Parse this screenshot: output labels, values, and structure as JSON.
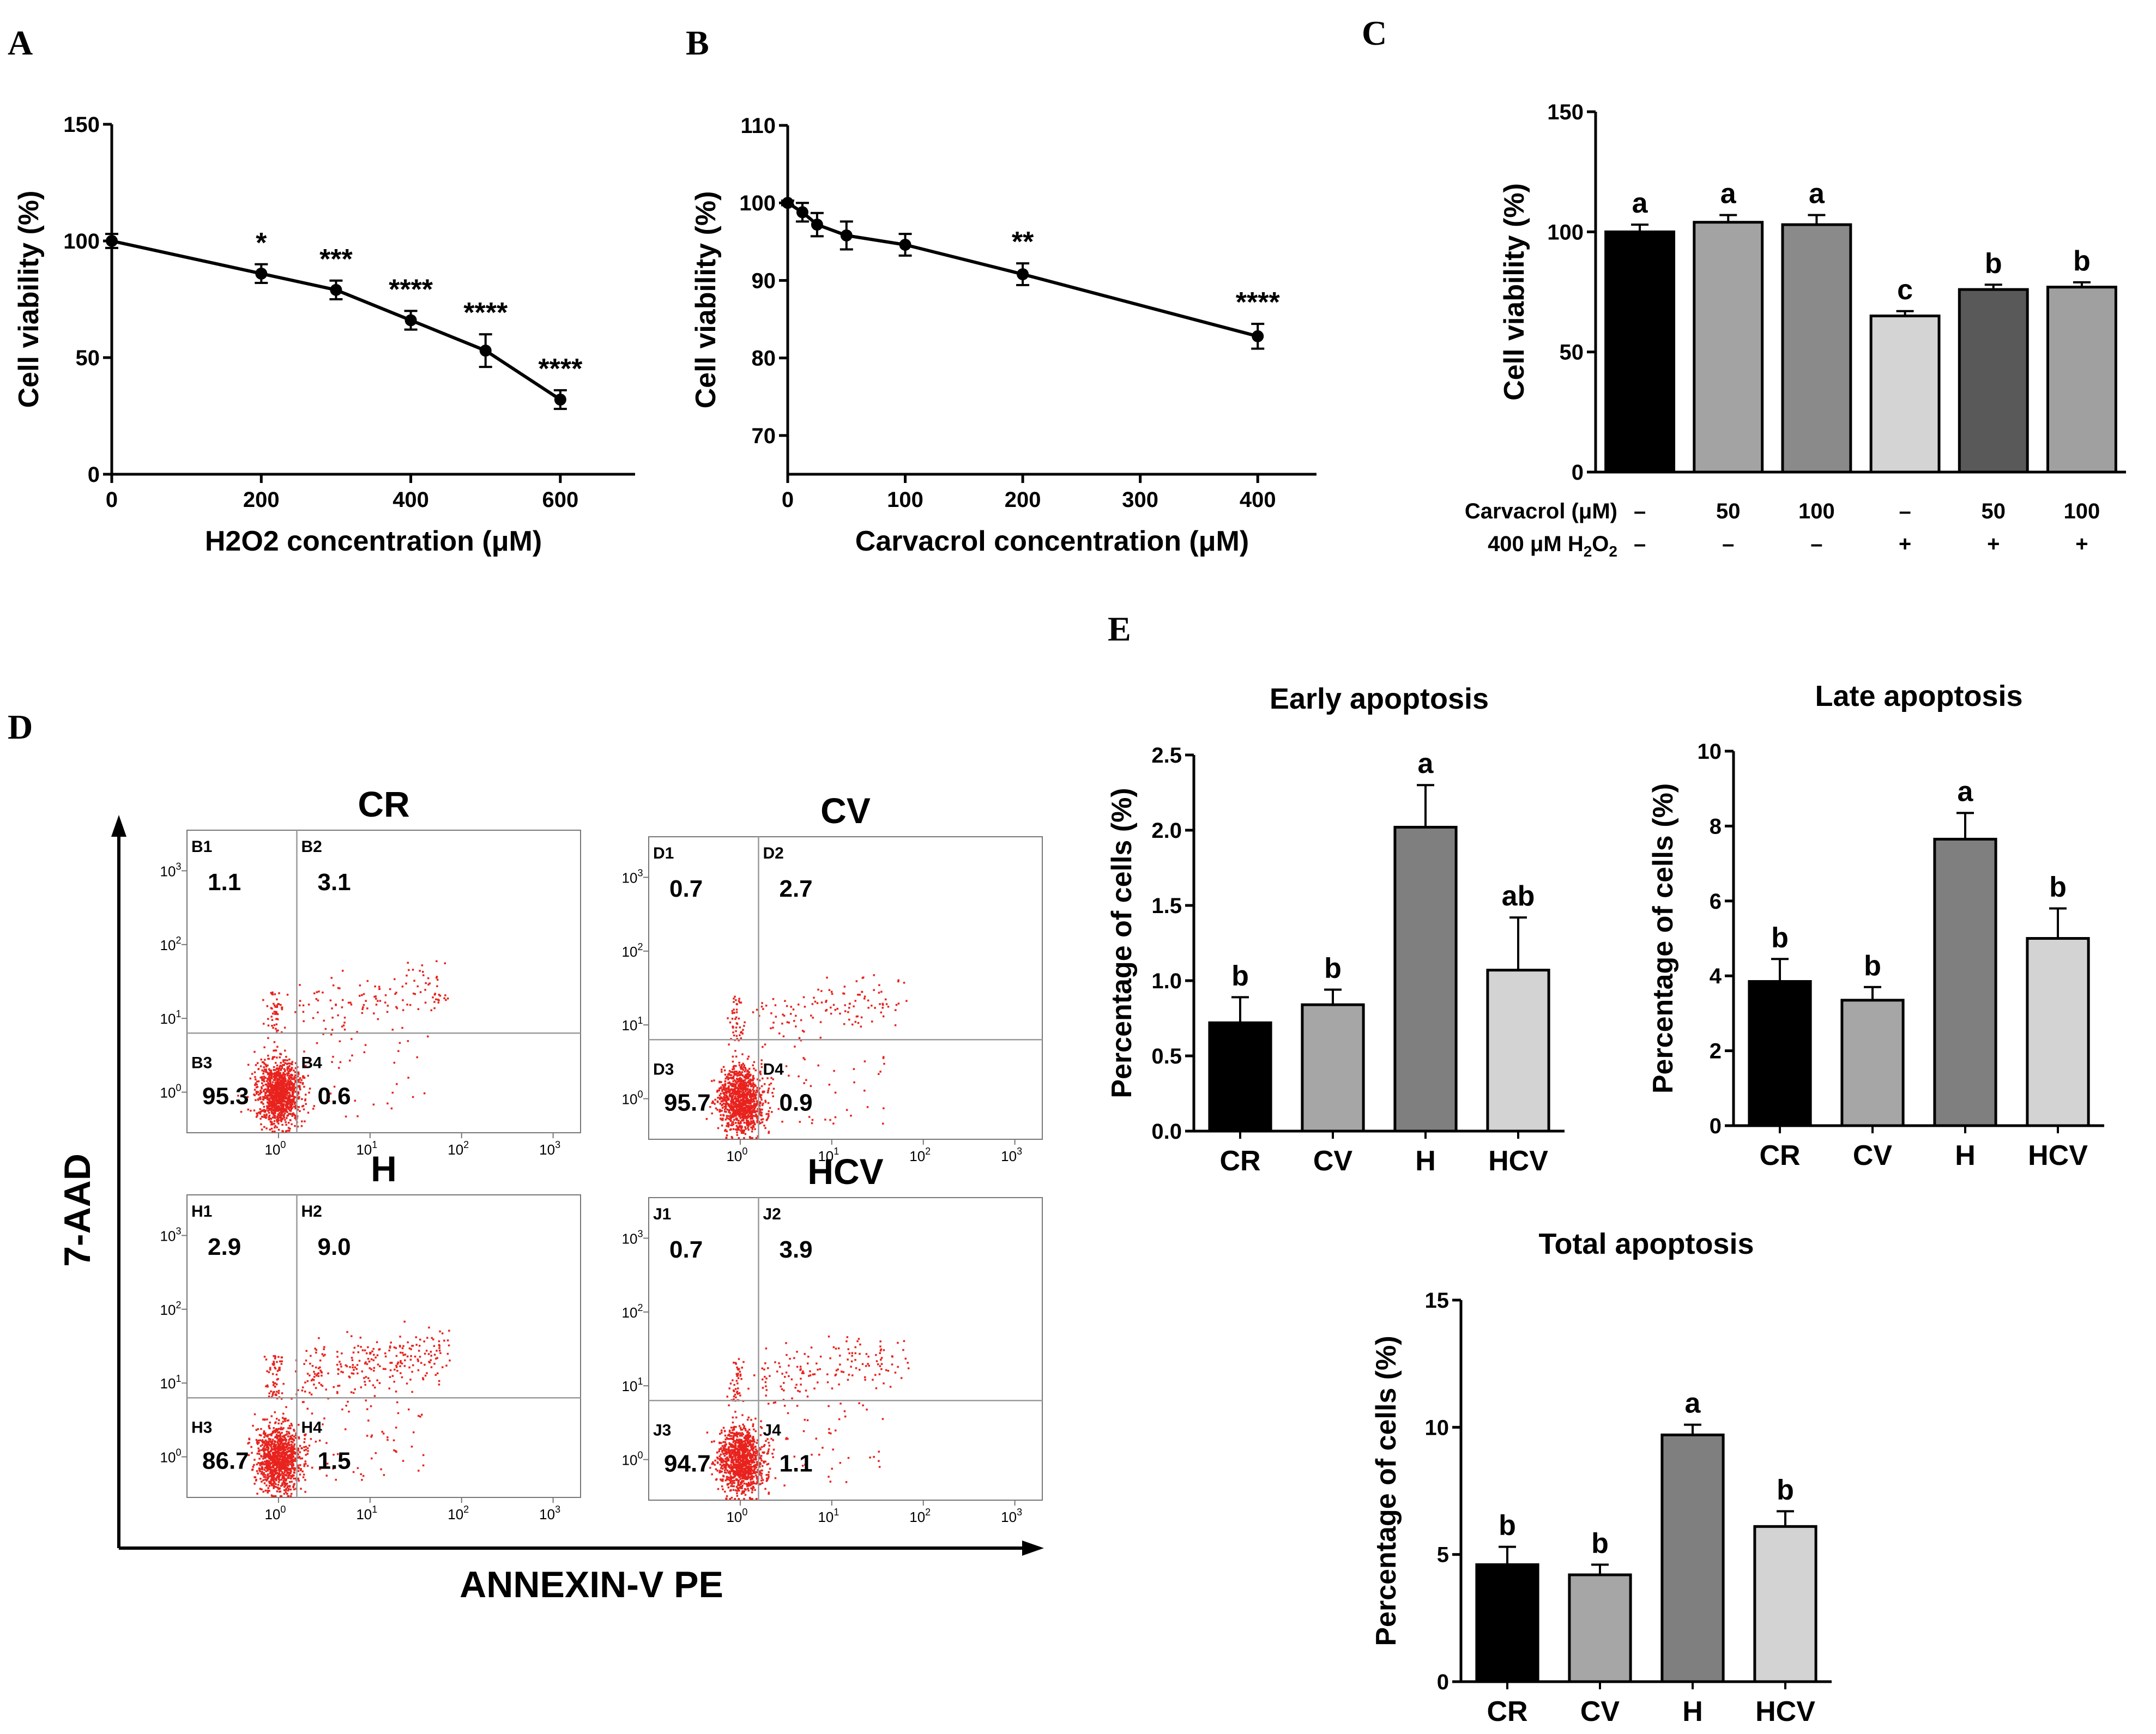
{
  "panel_labels": [
    "A",
    "B",
    "C",
    "D",
    "E"
  ],
  "colors": {
    "axis": "#000000",
    "dot": "#e8231e",
    "gate": "#9a9a9a"
  },
  "chart_data": [
    {
      "id": "A",
      "type": "line",
      "xlabel": "H2O2 concentration (μM)",
      "ylabel": "Cell viability (%)",
      "xlim": [
        0,
        700
      ],
      "ylim": [
        0,
        150
      ],
      "xticks": [
        0,
        200,
        400,
        600
      ],
      "yticks": [
        0,
        50,
        100,
        150
      ],
      "x": [
        0,
        200,
        300,
        400,
        500,
        600
      ],
      "values": [
        100,
        86,
        79,
        66,
        53,
        32
      ],
      "errors": [
        3,
        4,
        4,
        4,
        7,
        4
      ],
      "annotations": [
        "",
        "*",
        "***",
        "****",
        "****",
        "****"
      ]
    },
    {
      "id": "B",
      "type": "line",
      "xlabel": "Carvacrol concentration (μM)",
      "ylabel": "Cell viability (%)",
      "xlim": [
        0,
        450
      ],
      "ylim": [
        65,
        110
      ],
      "xticks": [
        0,
        100,
        200,
        300,
        400
      ],
      "yticks": [
        70,
        80,
        90,
        100,
        110
      ],
      "x": [
        0,
        12.5,
        25,
        50,
        100,
        200,
        400
      ],
      "values": [
        100,
        98.8,
        97.2,
        95.8,
        94.6,
        90.8,
        82.8
      ],
      "errors": [
        0.3,
        1.2,
        1.5,
        1.8,
        1.4,
        1.4,
        1.6
      ],
      "annotations": [
        "",
        "",
        "",
        "",
        "",
        "**",
        "****"
      ]
    },
    {
      "id": "C",
      "type": "bar",
      "ylabel": "Cell viability (%)",
      "ylim": [
        0,
        150
      ],
      "yticks": [
        0,
        50,
        100,
        150
      ],
      "values": [
        100,
        104,
        103,
        65,
        76,
        77
      ],
      "errors": [
        3,
        3,
        4,
        2,
        2,
        2
      ],
      "letters": [
        "a",
        "a",
        "a",
        "c",
        "b",
        "b"
      ],
      "colors": [
        "#000000",
        "#a3a3a3",
        "#8a8a8a",
        "#d4d4d4",
        "#595959",
        "#a0a0a0"
      ],
      "row_labels": [
        "Carvacrol (μM)",
        "400 μM H"
      ],
      "row_labels_sub": "2",
      "row_labels_tail": "O",
      "row1": [
        "–",
        "50",
        "100",
        "–",
        "50",
        "100"
      ],
      "row2": [
        "–",
        "–",
        "–",
        "+",
        "+",
        "+"
      ]
    },
    {
      "id": "E1",
      "type": "bar",
      "title": "Early apoptosis",
      "ylabel": "Percentage of cells (%)",
      "ylim": [
        0,
        2.5
      ],
      "yticks": [
        "0.0",
        "0.5",
        "1.0",
        "1.5",
        "2.0",
        "2.5"
      ],
      "categories": [
        "CR",
        "CV",
        "H",
        "HCV"
      ],
      "values": [
        0.72,
        0.84,
        2.02,
        1.07
      ],
      "errors": [
        0.17,
        0.1,
        0.28,
        0.35
      ],
      "letters": [
        "b",
        "b",
        "a",
        "ab"
      ],
      "colors": [
        "#000000",
        "#a6a6a6",
        "#7f7f7f",
        "#d3d3d3"
      ]
    },
    {
      "id": "E2",
      "type": "bar",
      "title": "Late apoptosis",
      "ylabel": "Percentage of cells (%)",
      "ylim": [
        0,
        10
      ],
      "yticks": [
        "0",
        "2",
        "4",
        "6",
        "8",
        "10"
      ],
      "categories": [
        "CR",
        "CV",
        "H",
        "HCV"
      ],
      "values": [
        3.85,
        3.35,
        7.65,
        5.0
      ],
      "errors": [
        0.6,
        0.35,
        0.7,
        0.8
      ],
      "letters": [
        "b",
        "b",
        "a",
        "b"
      ],
      "colors": [
        "#000000",
        "#a6a6a6",
        "#7f7f7f",
        "#d3d3d3"
      ]
    },
    {
      "id": "E3",
      "type": "bar",
      "title": "Total apoptosis",
      "ylabel": "Percentage of cells (%)",
      "ylim": [
        0,
        15
      ],
      "yticks": [
        "0",
        "5",
        "10",
        "15"
      ],
      "categories": [
        "CR",
        "CV",
        "H",
        "HCV"
      ],
      "values": [
        4.6,
        4.2,
        9.7,
        6.1
      ],
      "errors": [
        0.7,
        0.4,
        0.4,
        0.6
      ],
      "letters": [
        "b",
        "b",
        "a",
        "b"
      ],
      "colors": [
        "#000000",
        "#a6a6a6",
        "#7f7f7f",
        "#d3d3d3"
      ]
    },
    {
      "id": "D",
      "type": "scatter",
      "xlabel": "ANNEXIN-V PE",
      "ylabel": "7-AAD",
      "axis_ticks": [
        "0",
        "1",
        "2",
        "3"
      ],
      "plots": [
        {
          "title": "CR",
          "quads": [
            "B1",
            "B2",
            "B3",
            "B4"
          ],
          "values": [
            "1.1",
            "3.1",
            "95.3",
            "0.6"
          ]
        },
        {
          "title": "CV",
          "quads": [
            "D1",
            "D2",
            "D3",
            "D4"
          ],
          "values": [
            "0.7",
            "2.7",
            "95.7",
            "0.9"
          ]
        },
        {
          "title": "H",
          "quads": [
            "H1",
            "H2",
            "H3",
            "H4"
          ],
          "values": [
            "2.9",
            "9.0",
            "86.7",
            "1.5"
          ]
        },
        {
          "title": "HCV",
          "quads": [
            "J1",
            "J2",
            "J3",
            "J4"
          ],
          "values": [
            "0.7",
            "3.9",
            "94.7",
            "1.1"
          ]
        }
      ]
    }
  ]
}
